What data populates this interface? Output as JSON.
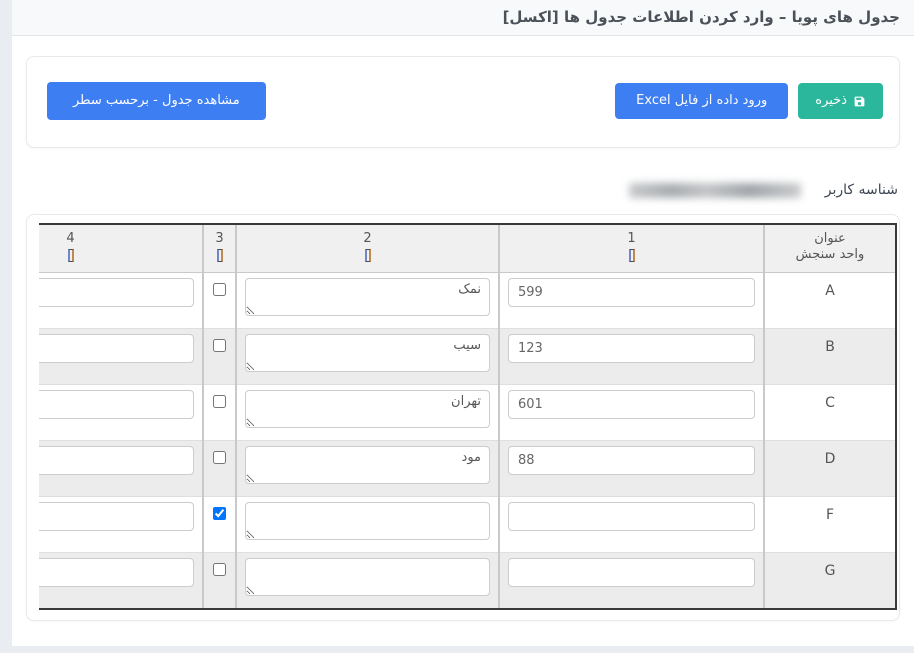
{
  "page": {
    "title": "جدول های پویا – وارد کردن اطلاعات جدول ها [اکسل]"
  },
  "toolbar": {
    "save_label": "ذخیره",
    "save_icon": "floppy-disk-icon",
    "excel_label": "ورود داده از فایل Excel",
    "view_label": "مشاهده جدول - برحسب سطر"
  },
  "user": {
    "label": "شناسه کاربر",
    "value_redacted": true
  },
  "table": {
    "title_header": {
      "line1": "عنوان",
      "line2": "واحد سنجش"
    },
    "header_icon": "glyph-box-icon",
    "columns": [
      {
        "id": "1"
      },
      {
        "id": "2"
      },
      {
        "id": "3"
      },
      {
        "id": "4"
      }
    ],
    "rows": [
      {
        "label": "A",
        "col1": "599",
        "col2": "نمک",
        "col3_checked": false,
        "col4": ""
      },
      {
        "label": "B",
        "col1": "123",
        "col2": "سیب",
        "col3_checked": false,
        "col4": ""
      },
      {
        "label": "C",
        "col1": "601",
        "col2": "تهران",
        "col3_checked": false,
        "col4": ""
      },
      {
        "label": "D",
        "col1": "88",
        "col2": "مود",
        "col3_checked": false,
        "col4": ""
      },
      {
        "label": "F",
        "col1": "",
        "col2": "",
        "col3_checked": true,
        "col4": ""
      },
      {
        "label": "G",
        "col1": "",
        "col2": "",
        "col3_checked": false,
        "col4": ""
      }
    ]
  },
  "colors": {
    "accent_teal": "#2bb79b",
    "accent_blue": "#3d7ef2",
    "page_background": "#e9edf1",
    "stripe_gray": "#ececec",
    "table_border_dark": "#3a3a3a"
  }
}
